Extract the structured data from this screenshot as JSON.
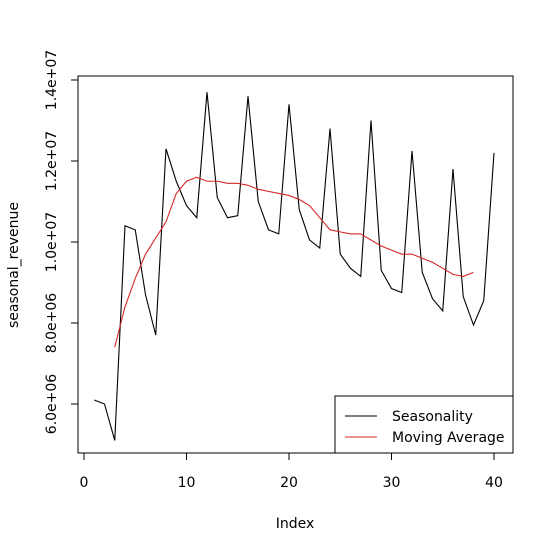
{
  "chart_data": {
    "type": "line",
    "xlabel": "Index",
    "ylabel": "seasonal_revenue",
    "xlim": [
      0,
      41
    ],
    "ylim": [
      4800000,
      14400000
    ],
    "x_ticks": [
      0,
      10,
      20,
      30,
      40
    ],
    "x_tick_labels": [
      "0",
      "10",
      "20",
      "30",
      "40"
    ],
    "y_ticks": [
      6000000,
      8000000,
      10000000,
      12000000,
      14000000
    ],
    "y_tick_labels": [
      "6.0e+06",
      "8.0e+06",
      "1.0e+07",
      "1.2e+07",
      "1.4e+07"
    ],
    "grid": false,
    "legend_position": "bottom-right",
    "series": [
      {
        "name": "Seasonality",
        "color": "#000000",
        "x": [
          1,
          2,
          3,
          4,
          5,
          6,
          7,
          8,
          9,
          10,
          11,
          12,
          13,
          14,
          15,
          16,
          17,
          18,
          19,
          20,
          21,
          22,
          23,
          24,
          25,
          26,
          27,
          28,
          29,
          30,
          31,
          32,
          33,
          34,
          35,
          36,
          37,
          38,
          39,
          40
        ],
        "y": [
          6100000,
          6000000,
          5100000,
          10400000,
          10300000,
          8700000,
          7700000,
          12300000,
          11500000,
          10900000,
          10600000,
          13700000,
          11100000,
          10600000,
          10650000,
          13600000,
          11000000,
          10300000,
          10200000,
          13400000,
          10800000,
          10050000,
          9850000,
          12800000,
          9700000,
          9350000,
          9150000,
          13000000,
          9300000,
          8850000,
          8750000,
          12250000,
          9250000,
          8600000,
          8300000,
          11800000,
          8650000,
          7950000,
          8550000,
          12200000
        ]
      },
      {
        "name": "Moving Average",
        "color": "#d62728",
        "x": [
          3,
          4,
          5,
          6,
          7,
          8,
          9,
          10,
          11,
          12,
          13,
          14,
          15,
          16,
          17,
          18,
          19,
          20,
          21,
          22,
          23,
          24,
          25,
          26,
          27,
          28,
          29,
          30,
          31,
          32,
          33,
          34,
          35,
          36,
          37,
          38
        ],
        "y": [
          7400000,
          8400000,
          9100000,
          9700000,
          10100000,
          10500000,
          11200000,
          11500000,
          11600000,
          11500000,
          11500000,
          11450000,
          11450000,
          11400000,
          11300000,
          11250000,
          11200000,
          11150000,
          11050000,
          10900000,
          10600000,
          10300000,
          10250000,
          10200000,
          10200000,
          10050000,
          9900000,
          9800000,
          9700000,
          9700000,
          9600000,
          9500000,
          9350000,
          9200000,
          9150000,
          9250000
        ]
      }
    ]
  }
}
